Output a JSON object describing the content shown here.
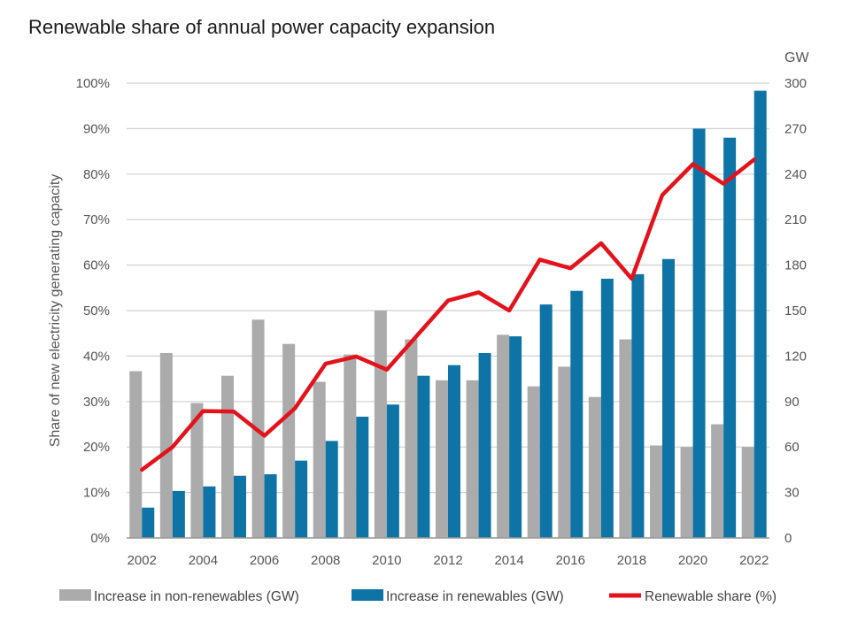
{
  "chart_data": {
    "type": "bar",
    "title": "Renewable share of annual power capacity expansion",
    "ylabel": "Share of new electricity generating capacity",
    "y2label": "GW",
    "categories": [
      "2002",
      "2003",
      "2004",
      "2005",
      "2006",
      "2007",
      "2008",
      "2009",
      "2010",
      "2011",
      "2012",
      "2013",
      "2014",
      "2015",
      "2016",
      "2017",
      "2018",
      "2019",
      "2020",
      "2021",
      "2022"
    ],
    "x_tick_labels": [
      "2002",
      "2004",
      "2006",
      "2008",
      "2010",
      "2012",
      "2014",
      "2016",
      "2018",
      "2020",
      "2022"
    ],
    "y_ticks": [
      "0%",
      "10%",
      "20%",
      "30%",
      "40%",
      "50%",
      "60%",
      "70%",
      "80%",
      "90%",
      "100%"
    ],
    "y2_ticks": [
      "0",
      "30",
      "60",
      "90",
      "120",
      "150",
      "180",
      "210",
      "240",
      "270",
      "300"
    ],
    "ylim": [
      0,
      100
    ],
    "y2lim": [
      0,
      300
    ],
    "grid": true,
    "legend_position": "bottom",
    "colors": {
      "non_renewables": "#ababab",
      "renewables": "#0e74a6",
      "share": "#e3121b",
      "grid": "#cfcfcf"
    },
    "series": [
      {
        "name": "Increase in non-renewables (GW)",
        "axis": "right",
        "kind": "bar",
        "values": [
          110,
          122,
          89,
          107,
          144,
          128,
          103,
          121,
          150,
          131,
          104,
          104,
          134,
          100,
          113,
          93,
          131,
          61,
          60,
          75,
          60
        ]
      },
      {
        "name": "Increase in renewables (GW)",
        "axis": "right",
        "kind": "bar",
        "values": [
          20,
          31,
          34,
          41,
          42,
          51,
          64,
          80,
          88,
          107,
          114,
          122,
          133,
          154,
          163,
          171,
          174,
          184,
          270,
          264,
          295
        ]
      },
      {
        "name": "Renewable share (%)",
        "axis": "left",
        "kind": "line",
        "values": [
          15,
          20,
          27.9,
          27.8,
          22.5,
          28.5,
          38.3,
          39.9,
          37,
          44.6,
          52.2,
          54,
          50,
          61.2,
          59.3,
          64.8,
          57,
          75.4,
          82.2,
          77.9,
          83.2
        ]
      }
    ]
  }
}
